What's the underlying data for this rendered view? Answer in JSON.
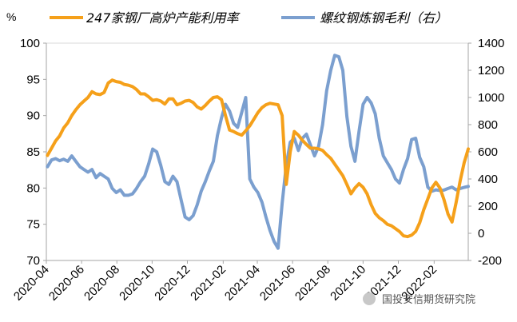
{
  "chart_data": {
    "type": "line",
    "left_unit": "%",
    "y_left": {
      "lim": [
        70,
        100
      ],
      "ticks": [
        "100",
        "95",
        "90",
        "85",
        "80",
        "75",
        "70"
      ]
    },
    "y_right": {
      "lim": [
        -200,
        1400
      ],
      "ticks": [
        "1400",
        "1200",
        "1000",
        "800",
        "600",
        "400",
        "200",
        "0",
        "-200"
      ]
    },
    "x_range": [
      "2020-04",
      "2022-04"
    ],
    "x_ticks": [
      "2020-04",
      "2020-06",
      "2020-08",
      "2020-10",
      "2020-12",
      "2021-02",
      "2021-04",
      "2021-06",
      "2021-08",
      "2021-10",
      "2021-12",
      "2022-02"
    ],
    "series": [
      {
        "name": "247家钢厂高炉产能利用率",
        "axis": "left",
        "color": "#F5A01A",
        "x": [
          "2020-04-03",
          "2020-04-10",
          "2020-04-17",
          "2020-04-24",
          "2020-05-01",
          "2020-05-08",
          "2020-05-15",
          "2020-05-22",
          "2020-05-29",
          "2020-06-05",
          "2020-06-12",
          "2020-06-19",
          "2020-06-26",
          "2020-07-03",
          "2020-07-10",
          "2020-07-17",
          "2020-07-24",
          "2020-07-31",
          "2020-08-07",
          "2020-08-14",
          "2020-08-21",
          "2020-08-28",
          "2020-09-04",
          "2020-09-11",
          "2020-09-18",
          "2020-09-25",
          "2020-10-02",
          "2020-10-09",
          "2020-10-16",
          "2020-10-23",
          "2020-10-30",
          "2020-11-06",
          "2020-11-13",
          "2020-11-20",
          "2020-11-27",
          "2020-12-04",
          "2020-12-11",
          "2020-12-18",
          "2020-12-25",
          "2021-01-01",
          "2021-01-08",
          "2021-01-15",
          "2021-01-22",
          "2021-01-29",
          "2021-02-05",
          "2021-02-12",
          "2021-02-19",
          "2021-02-26",
          "2021-03-05",
          "2021-03-12",
          "2021-03-19",
          "2021-03-26",
          "2021-04-02",
          "2021-04-09",
          "2021-04-16",
          "2021-04-23",
          "2021-04-30",
          "2021-05-07",
          "2021-05-14",
          "2021-05-21",
          "2021-05-28",
          "2021-06-04",
          "2021-06-11",
          "2021-06-18",
          "2021-06-25",
          "2021-07-02",
          "2021-07-09",
          "2021-07-16",
          "2021-07-23",
          "2021-07-30",
          "2021-08-06",
          "2021-08-13",
          "2021-08-20",
          "2021-08-27",
          "2021-09-03",
          "2021-09-10",
          "2021-09-17",
          "2021-09-24",
          "2021-10-01",
          "2021-10-08",
          "2021-10-15",
          "2021-10-22",
          "2021-10-29",
          "2021-11-05",
          "2021-11-12",
          "2021-11-19",
          "2021-11-26",
          "2021-12-03",
          "2021-12-10",
          "2021-12-17",
          "2021-12-24",
          "2021-12-31",
          "2022-01-07",
          "2022-01-14",
          "2022-01-21",
          "2022-01-28",
          "2022-02-04",
          "2022-02-11",
          "2022-02-18",
          "2022-02-25",
          "2022-03-04",
          "2022-03-11",
          "2022-03-18",
          "2022-03-25",
          "2022-04-01"
        ],
        "values": [
          84.5,
          85.5,
          86.5,
          87.2,
          88.3,
          89.0,
          90.0,
          90.8,
          91.5,
          92.0,
          92.5,
          93.3,
          93.0,
          92.9,
          93.2,
          94.5,
          94.9,
          94.7,
          94.6,
          94.3,
          94.2,
          94.0,
          93.6,
          93.0,
          93.0,
          92.6,
          92.1,
          92.2,
          92.0,
          91.6,
          92.3,
          92.3,
          91.5,
          91.7,
          92.0,
          92.1,
          91.8,
          91.2,
          90.9,
          91.4,
          92.0,
          92.5,
          92.6,
          92.2,
          90.0,
          88.0,
          87.8,
          87.5,
          87.3,
          87.9,
          88.6,
          89.5,
          90.4,
          91.1,
          91.5,
          91.7,
          91.6,
          91.5,
          90.0,
          80.5,
          85.0,
          87.8,
          87.3,
          86.6,
          86.0,
          85.5,
          85.5,
          85.4,
          85.2,
          84.6,
          84.1,
          83.3,
          82.5,
          81.7,
          80.5,
          79.2,
          80.0,
          80.6,
          80.1,
          79.2,
          77.7,
          76.5,
          75.9,
          75.5,
          75.0,
          74.8,
          74.4,
          74.0,
          73.4,
          73.3,
          73.5,
          74.0,
          75.2,
          77.0,
          78.5,
          80.0,
          80.8,
          80.0,
          78.4,
          76.4,
          75.3,
          78.0,
          81.0,
          83.5,
          85.4
        ]
      },
      {
        "name": "螺纹钢炼钢毛利（右）",
        "axis": "right",
        "color": "#7B9FCF",
        "x": [
          "2020-04-03",
          "2020-04-10",
          "2020-04-17",
          "2020-04-24",
          "2020-05-01",
          "2020-05-08",
          "2020-05-15",
          "2020-05-22",
          "2020-05-29",
          "2020-06-05",
          "2020-06-12",
          "2020-06-19",
          "2020-06-26",
          "2020-07-03",
          "2020-07-10",
          "2020-07-17",
          "2020-07-24",
          "2020-07-31",
          "2020-08-07",
          "2020-08-14",
          "2020-08-21",
          "2020-08-28",
          "2020-09-04",
          "2020-09-11",
          "2020-09-18",
          "2020-09-25",
          "2020-10-02",
          "2020-10-09",
          "2020-10-16",
          "2020-10-23",
          "2020-10-30",
          "2020-11-06",
          "2020-11-13",
          "2020-11-20",
          "2020-11-27",
          "2020-12-04",
          "2020-12-11",
          "2020-12-18",
          "2020-12-25",
          "2021-01-01",
          "2021-01-08",
          "2021-01-15",
          "2021-01-22",
          "2021-01-29",
          "2021-02-05",
          "2021-02-12",
          "2021-02-19",
          "2021-02-26",
          "2021-03-05",
          "2021-03-12",
          "2021-03-19",
          "2021-03-26",
          "2021-04-02",
          "2021-04-09",
          "2021-04-16",
          "2021-04-23",
          "2021-04-30",
          "2021-05-07",
          "2021-05-14",
          "2021-05-21",
          "2021-05-28",
          "2021-06-04",
          "2021-06-11",
          "2021-06-18",
          "2021-06-25",
          "2021-07-02",
          "2021-07-09",
          "2021-07-16",
          "2021-07-23",
          "2021-07-30",
          "2021-08-06",
          "2021-08-13",
          "2021-08-20",
          "2021-08-27",
          "2021-09-03",
          "2021-09-10",
          "2021-09-17",
          "2021-09-24",
          "2021-10-01",
          "2021-10-08",
          "2021-10-15",
          "2021-10-22",
          "2021-10-29",
          "2021-11-05",
          "2021-11-12",
          "2021-11-19",
          "2021-11-26",
          "2021-12-03",
          "2021-12-10",
          "2021-12-17",
          "2021-12-24",
          "2021-12-31",
          "2022-01-07",
          "2022-01-14",
          "2022-01-21",
          "2022-01-28",
          "2022-02-04",
          "2022-02-11",
          "2022-02-18",
          "2022-02-25",
          "2022-03-04",
          "2022-03-11",
          "2022-03-18",
          "2022-03-25",
          "2022-04-01"
        ],
        "values": [
          490,
          540,
          550,
          535,
          545,
          530,
          570,
          530,
          490,
          470,
          450,
          470,
          410,
          440,
          420,
          400,
          330,
          300,
          320,
          280,
          280,
          290,
          330,
          380,
          420,
          510,
          620,
          600,
          500,
          380,
          360,
          420,
          380,
          250,
          120,
          100,
          130,
          210,
          310,
          380,
          460,
          530,
          720,
          850,
          950,
          900,
          810,
          780,
          890,
          1000,
          400,
          340,
          300,
          230,
          120,
          20,
          -60,
          -110,
          220,
          500,
          670,
          700,
          610,
          700,
          730,
          650,
          570,
          640,
          800,
          1050,
          1200,
          1310,
          1300,
          1200,
          860,
          640,
          530,
          750,
          950,
          1000,
          960,
          880,
          700,
          570,
          520,
          470,
          400,
          370,
          470,
          550,
          690,
          700,
          560,
          490,
          340,
          310,
          320,
          315,
          318,
          330,
          340,
          320,
          330,
          338,
          345
        ]
      }
    ]
  },
  "watermark": {
    "text": "国投安信期货研究院"
  }
}
